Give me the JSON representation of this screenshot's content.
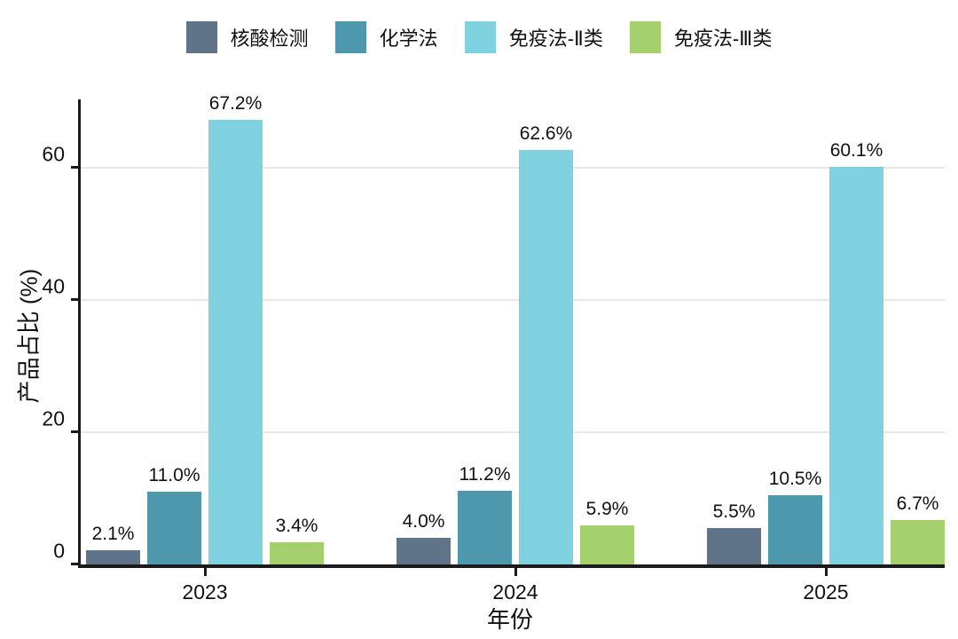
{
  "chart_data": {
    "type": "bar",
    "title": "",
    "categories": [
      "2023",
      "2024",
      "2025"
    ],
    "series": [
      {
        "name": "核酸检测",
        "color": "#5f7389",
        "values": [
          2.1,
          4.0,
          5.5
        ]
      },
      {
        "name": "化学法",
        "color": "#4e98ae",
        "values": [
          11.0,
          11.2,
          10.5
        ]
      },
      {
        "name": "免疫法-Ⅱ类",
        "color": "#80d2e0",
        "values": [
          67.2,
          62.6,
          60.1
        ]
      },
      {
        "name": "免疫法-Ⅲ类",
        "color": "#a4d16e",
        "values": [
          3.4,
          5.9,
          6.7
        ]
      }
    ],
    "bar_labels": [
      [
        "2.1%",
        "4.0%",
        "5.5%"
      ],
      [
        "11.0%",
        "11.2%",
        "10.5%"
      ],
      [
        "67.2%",
        "62.6%",
        "60.1%"
      ],
      [
        "3.4%",
        "5.9%",
        "6.7%"
      ]
    ],
    "xlabel": "年份",
    "ylabel": "产品占比 (%)",
    "yticks": [
      0,
      20,
      40,
      60
    ],
    "ylim": [
      0,
      70.3
    ],
    "grid": "horizontal",
    "legend_position": "top",
    "colors": {
      "axis": "#1b1b1b",
      "gridline": "#e7e7e7",
      "text": "#111111",
      "background": "#ffffff"
    }
  }
}
